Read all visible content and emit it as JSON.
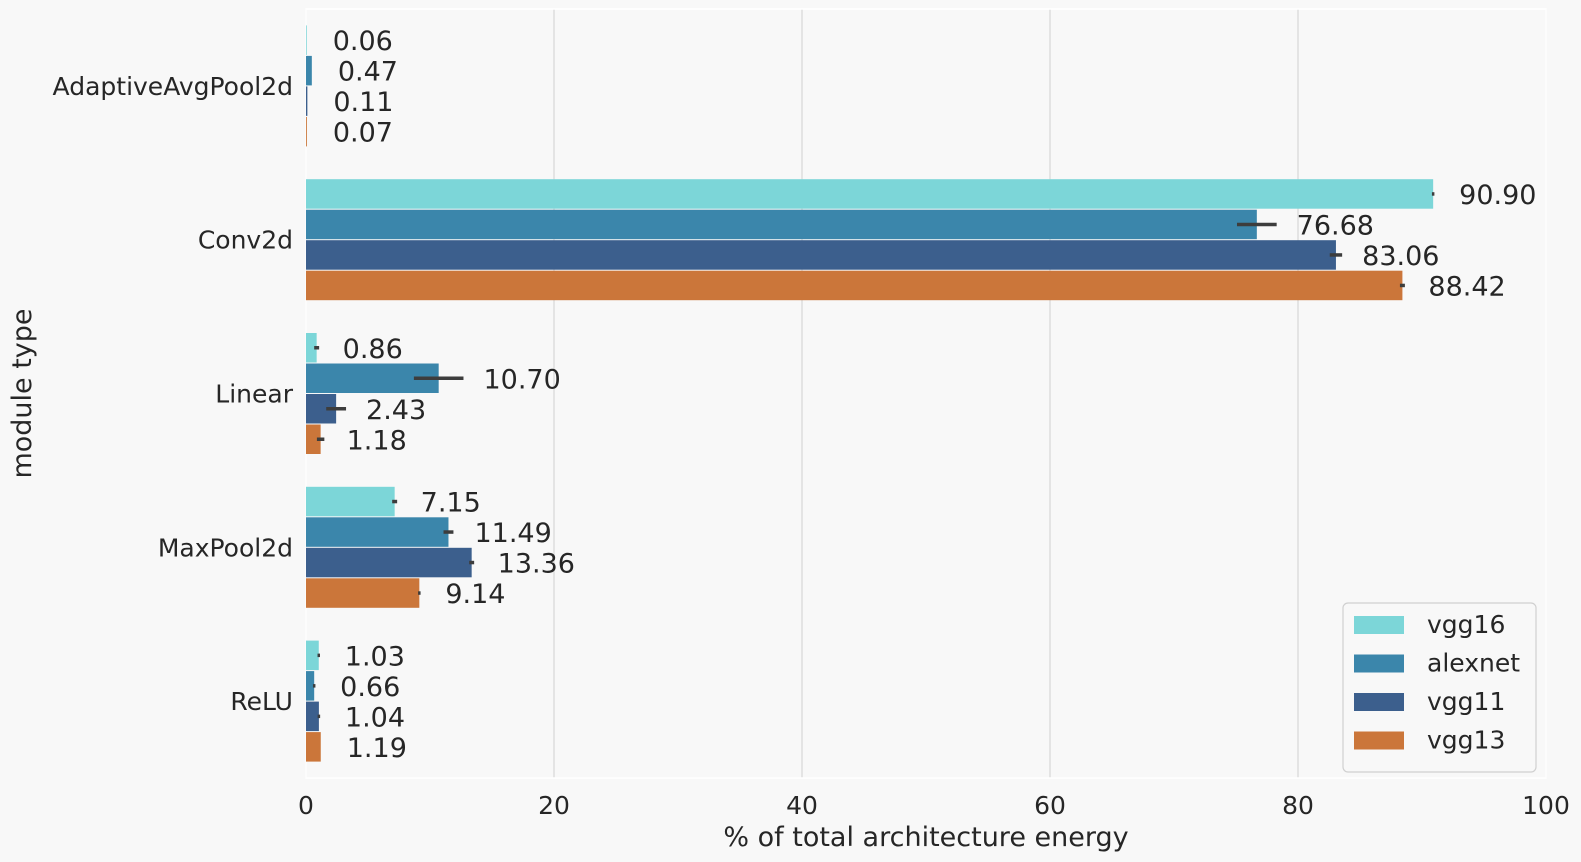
{
  "chart_data": {
    "type": "bar",
    "orientation": "horizontal",
    "title": "",
    "xlabel": "% of total architecture energy",
    "ylabel": "module type",
    "xlim": [
      0,
      100
    ],
    "xticks": [
      "0",
      "20",
      "40",
      "60",
      "80",
      "100"
    ],
    "xtick_values": [
      0,
      20,
      40,
      60,
      80,
      100
    ],
    "grid": true,
    "legend_position": "bottom-right",
    "categories": [
      "AdaptiveAvgPool2d",
      "Conv2d",
      "Linear",
      "MaxPool2d",
      "ReLU"
    ],
    "series": [
      {
        "name": "vgg16",
        "color": "#7cd6d8",
        "values": [
          0.06,
          90.9,
          0.86,
          7.15,
          1.03
        ],
        "labels": [
          "0.06",
          "90.90",
          "0.86",
          "7.15",
          "1.03"
        ],
        "errors": [
          0.0,
          0.1,
          0.2,
          0.2,
          0.1
        ]
      },
      {
        "name": "alexnet",
        "color": "#3b86ab",
        "values": [
          0.47,
          76.68,
          10.7,
          11.49,
          0.66
        ],
        "labels": [
          "0.47",
          "76.68",
          "10.70",
          "11.49",
          "0.66"
        ],
        "errors": [
          0.0,
          1.6,
          2.0,
          0.4,
          0.1
        ]
      },
      {
        "name": "vgg11",
        "color": "#3c5f8d",
        "values": [
          0.11,
          83.06,
          2.43,
          13.36,
          1.04
        ],
        "labels": [
          "0.11",
          "83.06",
          "2.43",
          "13.36",
          "1.04"
        ],
        "errors": [
          0.0,
          0.5,
          0.8,
          0.2,
          0.1
        ]
      },
      {
        "name": "vgg13",
        "color": "#cb763a",
        "values": [
          0.07,
          88.42,
          1.18,
          9.14,
          1.19
        ],
        "labels": [
          "0.07",
          "88.42",
          "1.18",
          "9.14",
          "1.19"
        ],
        "errors": [
          0.0,
          0.2,
          0.3,
          0.1,
          0.0
        ]
      }
    ]
  }
}
